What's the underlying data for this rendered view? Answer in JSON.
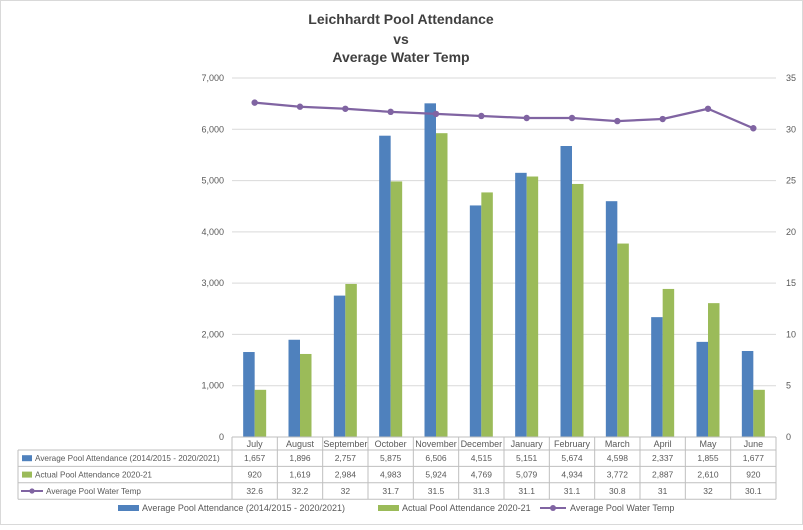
{
  "chart_data": {
    "type": "bar",
    "title_lines": [
      "Leichhardt Pool Attendance",
      "vs",
      "Average Water Temp"
    ],
    "categories": [
      "July",
      "August",
      "September",
      "October",
      "November",
      "December",
      "January",
      "February",
      "March",
      "April",
      "May",
      "June"
    ],
    "series": [
      {
        "name": "Average Pool Attendance (2014/2015 - 2020/2021)",
        "kind": "bar",
        "axis": "left",
        "color": "#4f81bd",
        "values": [
          1657,
          1896,
          2757,
          5875,
          6506,
          4515,
          5151,
          5674,
          4598,
          2337,
          1855,
          1677
        ],
        "table_values": [
          "1,657",
          "1,896",
          "2,757",
          "5,875",
          "6,506",
          "4,515",
          "5,151",
          "5,674",
          "4,598",
          "2,337",
          "1,855",
          "1,677"
        ]
      },
      {
        "name": "Actual Pool Attendance 2020-21",
        "kind": "bar",
        "axis": "left",
        "color": "#9bbb59",
        "values": [
          920,
          1619,
          2984,
          4983,
          5924,
          4769,
          5079,
          4934,
          3772,
          2887,
          2610,
          920
        ],
        "table_values": [
          "920",
          "1,619",
          "2,984",
          "4,983",
          "5,924",
          "4,769",
          "5,079",
          "4,934",
          "3,772",
          "2,887",
          "2,610",
          "920"
        ]
      },
      {
        "name": "Average Pool Water Temp",
        "kind": "line",
        "axis": "right",
        "color": "#8064a2",
        "values": [
          32.6,
          32.2,
          32,
          31.7,
          31.5,
          31.3,
          31.1,
          31.1,
          30.8,
          31,
          32,
          30.1
        ],
        "table_values": [
          "32.6",
          "32.2",
          "32",
          "31.7",
          "31.5",
          "31.3",
          "31.1",
          "31.1",
          "30.8",
          "31",
          "32",
          "30.1"
        ]
      }
    ],
    "left_axis": {
      "ylim": [
        0,
        7000
      ],
      "ticks": [
        "0",
        "1,000",
        "2,000",
        "3,000",
        "4,000",
        "5,000",
        "6,000",
        "7,000"
      ]
    },
    "right_axis": {
      "ylim": [
        0,
        35
      ],
      "ticks": [
        "0",
        "5",
        "10",
        "15",
        "20",
        "25",
        "30",
        "35"
      ]
    },
    "grid": true,
    "legend_position": "bottom",
    "data_table": true
  }
}
